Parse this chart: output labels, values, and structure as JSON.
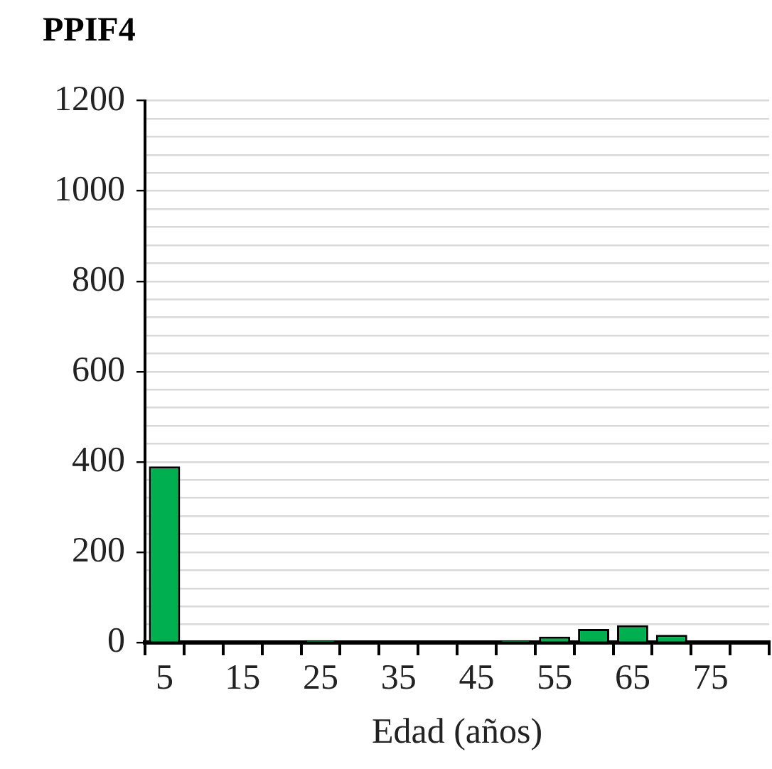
{
  "chart_data": {
    "type": "bar",
    "title": "PPIF4",
    "xlabel": "Edad (años)",
    "categories": [
      "5",
      null,
      "15",
      null,
      "25",
      null,
      "35",
      null,
      "45",
      null,
      "55",
      null,
      "65",
      null,
      "75",
      null
    ],
    "values": [
      390,
      0,
      0,
      0,
      5,
      0,
      0,
      0,
      0,
      5,
      13,
      30,
      38,
      17,
      0,
      0
    ],
    "color": "#00b050",
    "ylim": [
      0,
      1200
    ],
    "yticks": [
      0,
      {
        "value": 40,
        "label": null
      },
      {
        "value": 80,
        "label": null
      },
      {
        "value": 120,
        "label": null
      },
      {
        "value": 160,
        "label": null
      },
      200,
      {
        "value": 240,
        "label": null
      },
      {
        "value": 280,
        "label": null
      },
      {
        "value": 320,
        "label": null
      },
      {
        "value": 360,
        "label": null
      },
      400,
      {
        "value": 440,
        "label": null
      },
      {
        "value": 480,
        "label": null
      },
      {
        "value": 520,
        "label": null
      },
      {
        "value": 560,
        "label": null
      },
      600,
      {
        "value": 640,
        "label": null
      },
      {
        "value": 680,
        "label": null
      },
      {
        "value": 720,
        "label": null
      },
      {
        "value": 760,
        "label": null
      },
      800,
      {
        "value": 840,
        "label": null
      },
      {
        "value": 880,
        "label": null
      },
      {
        "value": 920,
        "label": null
      },
      {
        "value": 960,
        "label": null
      },
      1000,
      {
        "value": 1040,
        "label": null
      },
      {
        "value": 1080,
        "label": null
      },
      {
        "value": 1120,
        "label": null
      },
      {
        "value": 1160,
        "label": null
      },
      1200
    ],
    "grid": "y",
    "legend": false
  }
}
